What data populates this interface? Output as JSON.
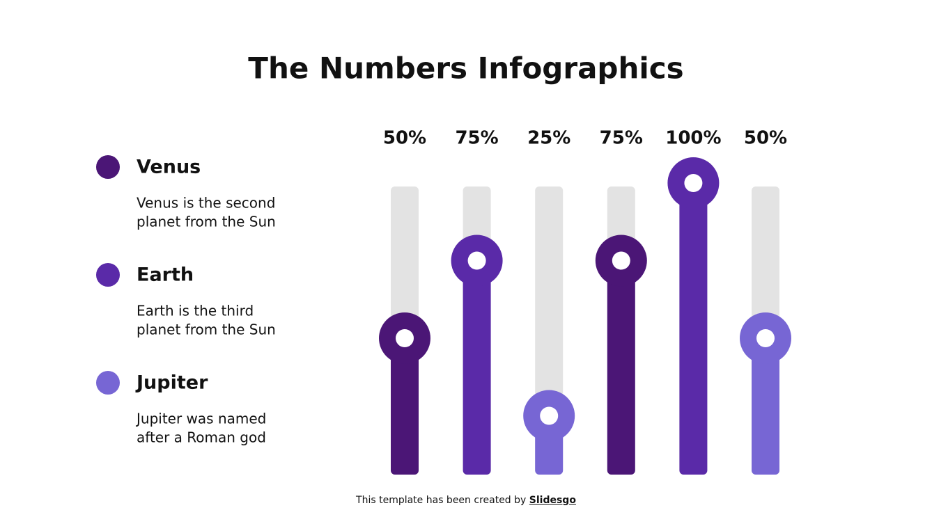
{
  "chart_data": {
    "type": "bar",
    "title": "The Numbers Infographics",
    "values": [
      50,
      75,
      25,
      75,
      100,
      50
    ],
    "value_labels": [
      "50%",
      "75%",
      "25%",
      "75%",
      "100%",
      "50%"
    ],
    "colors": [
      "#4b1676",
      "#5a2aa8",
      "#7766d4",
      "#4b1676",
      "#5a2aa8",
      "#7766d4"
    ],
    "ylim": [
      0,
      100
    ],
    "legend": [
      {
        "name": "Venus",
        "color": "#4b1676",
        "description": [
          "Venus is the second",
          "planet from the Sun"
        ]
      },
      {
        "name": "Earth",
        "color": "#5a2aa8",
        "description": [
          "Earth is the third",
          "planet from the Sun"
        ]
      },
      {
        "name": "Jupiter",
        "color": "#7766d4",
        "description": [
          "Jupiter was named",
          "after a Roman god"
        ]
      }
    ]
  },
  "footer": {
    "text": "This template has been created by ",
    "link": "Slidesgo"
  }
}
